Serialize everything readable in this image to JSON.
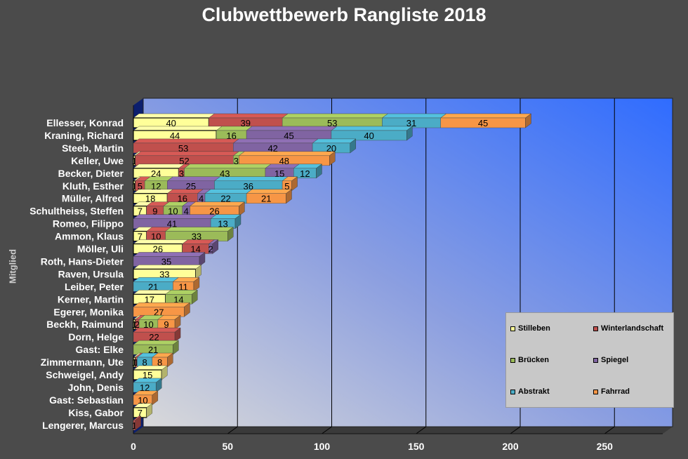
{
  "chart_data": {
    "type": "bar",
    "orientation": "horizontal",
    "stacked": true,
    "title": "Clubwettbewerb Rangliste 2018",
    "ylabel": "Mitglied",
    "xlim": [
      0,
      275
    ],
    "xticks": [
      "0",
      "50",
      "100",
      "150",
      "200",
      "250"
    ],
    "grid": true,
    "legend_position": "bottom-right",
    "categories": [
      "Ellesser, Konrad",
      "Kraning, Richard",
      "Steeb, Martin",
      "Keller, Uwe",
      "Becker, Dieter",
      "Kluth, Esther",
      "Müller, Alfred",
      "Schultheiss, Steffen",
      "Romeo, Filippo",
      "Ammon, Klaus",
      "Möller, Uli",
      "Roth, Hans-Dieter",
      "Raven, Ursula",
      "Leiber, Peter",
      "Kerner, Martin",
      "Egerer, Monika",
      "Beckh, Raimund",
      "Dorn, Helge",
      "Gast: Elke",
      "Zimmermann, Ute",
      "Schweigel, Andy",
      "John, Denis",
      "Gast: Sebastian",
      "Kiss, Gabor",
      "Lengerer, Marcus"
    ],
    "series": [
      {
        "name": "Stilleben",
        "color": "#ffff99",
        "values": [
          40,
          44,
          0,
          1,
          24,
          1,
          18,
          7,
          0,
          7,
          26,
          0,
          33,
          0,
          17,
          0,
          1,
          0,
          0,
          1,
          15,
          0,
          0,
          7,
          0
        ]
      },
      {
        "name": "Winterlandschaft",
        "color": "#c0504d",
        "values": [
          39,
          0,
          53,
          52,
          3,
          5,
          16,
          9,
          0,
          10,
          14,
          0,
          0,
          0,
          0,
          0,
          2,
          22,
          0,
          1,
          0,
          0,
          0,
          0,
          1
        ]
      },
      {
        "name": "Brücken",
        "color": "#9bbb59",
        "values": [
          53,
          16,
          0,
          3,
          43,
          12,
          0,
          10,
          0,
          33,
          0,
          0,
          0,
          0,
          14,
          0,
          10,
          0,
          21,
          0,
          0,
          0,
          0,
          0,
          0
        ]
      },
      {
        "name": "Spiegel",
        "color": "#8064a2",
        "values": [
          0,
          45,
          42,
          0,
          15,
          25,
          4,
          4,
          41,
          0,
          2,
          35,
          0,
          0,
          0,
          0,
          0,
          0,
          0,
          0,
          0,
          0,
          0,
          0,
          0
        ]
      },
      {
        "name": "Abstrakt",
        "color": "#4bacc6",
        "values": [
          31,
          40,
          20,
          0,
          12,
          36,
          22,
          0,
          13,
          0,
          0,
          0,
          0,
          21,
          0,
          0,
          0,
          0,
          0,
          8,
          0,
          12,
          0,
          0,
          0
        ]
      },
      {
        "name": "Fahrrad",
        "color": "#f79646",
        "values": [
          45,
          0,
          0,
          48,
          0,
          5,
          21,
          26,
          0,
          0,
          0,
          0,
          0,
          11,
          0,
          27,
          9,
          0,
          0,
          8,
          0,
          0,
          10,
          0,
          0
        ]
      }
    ]
  }
}
